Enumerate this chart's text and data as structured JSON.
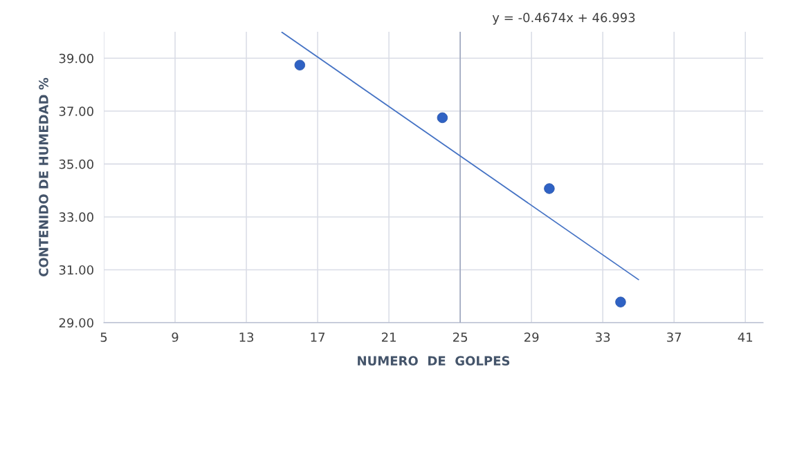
{
  "chart_data": {
    "type": "scatter",
    "xlabel": "NUMERO  DE  GOLPES",
    "ylabel": "CONTENIDO DE HUMEDAD %",
    "annotations": [
      "y = -0.4674x + 46.993"
    ],
    "series": [
      {
        "color": "#2f62c4",
        "x": [
          16,
          24,
          30,
          34
        ],
        "values": [
          38.74,
          36.75,
          34.07,
          29.78
        ],
        "marker": "circle"
      },
      {
        "type": "line",
        "color": "#4472c4",
        "x": [
          15,
          35
        ],
        "values": [
          39.98,
          30.63
        ],
        "marker": "none",
        "line_style": "solid"
      }
    ],
    "xlim": [
      5,
      42
    ],
    "xticks": [
      5,
      9,
      13,
      17,
      21,
      25,
      29,
      33,
      37,
      41
    ],
    "ylim": [
      29,
      40
    ],
    "yticks": [
      {
        "value": 29,
        "label": "29.00"
      },
      {
        "value": 31,
        "label": "31.00"
      },
      {
        "value": 33,
        "label": "33.00"
      },
      {
        "value": 35,
        "label": "35.00"
      },
      {
        "value": 37,
        "label": "37.00"
      },
      {
        "value": 39,
        "label": "39.00"
      }
    ],
    "ref_lines": [
      {
        "axis": "x",
        "value": 25,
        "color": "#9fa8bf"
      }
    ],
    "grid": true,
    "legend": false
  }
}
